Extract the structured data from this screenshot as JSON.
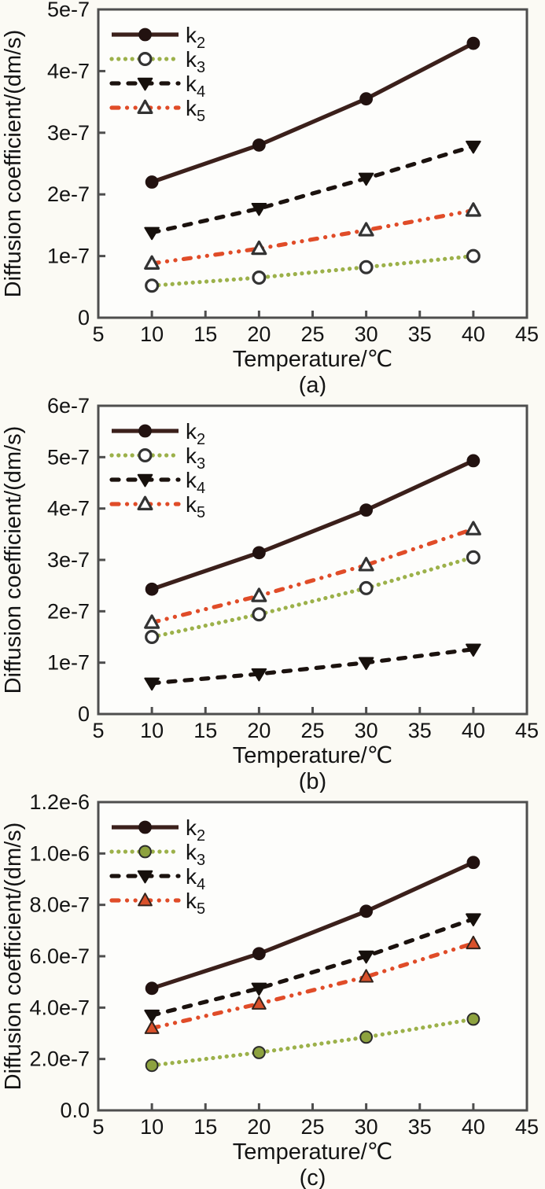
{
  "style": {
    "figure_bg": "#fbfaf4",
    "plot_bg": "#fdfdfb",
    "axis_color": "#4e4e4e",
    "text_color": "#141414",
    "line_width": 5.2
  },
  "chart_data": [
    {
      "type": "line",
      "panel_label": "(a)",
      "title": "",
      "xlabel": "Temperature/℃",
      "ylabel": "Diffusion coefficient/(dm/s)",
      "x": [
        10,
        20,
        30,
        40
      ],
      "xlim": [
        5,
        45
      ],
      "xticks": [
        5,
        10,
        15,
        20,
        25,
        30,
        35,
        40,
        45
      ],
      "ylim": [
        0,
        5e-07
      ],
      "yticks": [
        {
          "value": 0,
          "label": "0"
        },
        {
          "value": 1e-07,
          "label": "1e-7"
        },
        {
          "value": 2e-07,
          "label": "2e-7"
        },
        {
          "value": 3e-07,
          "label": "3e-7"
        },
        {
          "value": 4e-07,
          "label": "4e-7"
        },
        {
          "value": 5e-07,
          "label": "5e-7"
        }
      ],
      "grid": false,
      "legend_position": "top-left",
      "series": [
        {
          "name": "k2",
          "label_main": "k",
          "label_sub": "2",
          "values": [
            2.2e-07,
            2.8e-07,
            3.55e-07,
            4.45e-07
          ],
          "color": "#3b201b",
          "line_style": "solid",
          "marker": "circle",
          "marker_fill": "#221210",
          "marker_edge": "#221210"
        },
        {
          "name": "k3",
          "label_main": "k",
          "label_sub": "3",
          "values": [
            5.2e-08,
            6.5e-08,
            8.2e-08,
            1e-07
          ],
          "color": "#9cb14a",
          "line_style": "dotted",
          "marker": "circle",
          "marker_fill": "#ffffff",
          "marker_edge": "#333333"
        },
        {
          "name": "k4",
          "label_main": "k",
          "label_sub": "4",
          "values": [
            1.38e-07,
            1.77e-07,
            2.26e-07,
            2.78e-07
          ],
          "color": "#1b120e",
          "line_style": "dashed",
          "marker": "triangle-down",
          "marker_fill": "#16100c",
          "marker_edge": "#16100c"
        },
        {
          "name": "k5",
          "label_main": "k",
          "label_sub": "5",
          "values": [
            8.8e-08,
            1.12e-07,
            1.42e-07,
            1.74e-07
          ],
          "color": "#e04c28",
          "line_style": "dash-dot-dot",
          "marker": "triangle-up",
          "marker_fill": "#ffffff",
          "marker_edge": "#333333"
        }
      ]
    },
    {
      "type": "line",
      "panel_label": "(b)",
      "title": "",
      "xlabel": "Temperature/℃",
      "ylabel": "Diffusion coefficient/(dm/s)",
      "x": [
        10,
        20,
        30,
        40
      ],
      "xlim": [
        5,
        45
      ],
      "xticks": [
        5,
        10,
        15,
        20,
        25,
        30,
        35,
        40,
        45
      ],
      "ylim": [
        0,
        6e-07
      ],
      "yticks": [
        {
          "value": 0,
          "label": "0"
        },
        {
          "value": 1e-07,
          "label": "1e-7"
        },
        {
          "value": 2e-07,
          "label": "2e-7"
        },
        {
          "value": 3e-07,
          "label": "3e-7"
        },
        {
          "value": 4e-07,
          "label": "4e-7"
        },
        {
          "value": 5e-07,
          "label": "5e-7"
        },
        {
          "value": 6e-07,
          "label": "6e-7"
        }
      ],
      "grid": false,
      "legend_position": "top-left",
      "series": [
        {
          "name": "k2",
          "label_main": "k",
          "label_sub": "2",
          "values": [
            2.43e-07,
            3.14e-07,
            3.97e-07,
            4.93e-07
          ],
          "color": "#3b201b",
          "line_style": "solid",
          "marker": "circle",
          "marker_fill": "#221210",
          "marker_edge": "#221210"
        },
        {
          "name": "k3",
          "label_main": "k",
          "label_sub": "3",
          "values": [
            1.5e-07,
            1.94e-07,
            2.45e-07,
            3.05e-07
          ],
          "color": "#9cb14a",
          "line_style": "dotted",
          "marker": "circle",
          "marker_fill": "#ffffff",
          "marker_edge": "#333333"
        },
        {
          "name": "k4",
          "label_main": "k",
          "label_sub": "4",
          "values": [
            6e-08,
            7.8e-08,
            1e-07,
            1.26e-07
          ],
          "color": "#1b120e",
          "line_style": "dashed",
          "marker": "triangle-down",
          "marker_fill": "#16100c",
          "marker_edge": "#16100c"
        },
        {
          "name": "k5",
          "label_main": "k",
          "label_sub": "5",
          "values": [
            1.78e-07,
            2.3e-07,
            2.9e-07,
            3.6e-07
          ],
          "color": "#e04c28",
          "line_style": "dash-dot-dot",
          "marker": "triangle-up",
          "marker_fill": "#ffffff",
          "marker_edge": "#333333"
        }
      ]
    },
    {
      "type": "line",
      "panel_label": "(c)",
      "title": "",
      "xlabel": "Temperature/℃",
      "ylabel": "Diffusion coefficient/(dm/s)",
      "x": [
        10,
        20,
        30,
        40
      ],
      "xlim": [
        5,
        45
      ],
      "xticks": [
        5,
        10,
        15,
        20,
        25,
        30,
        35,
        40,
        45
      ],
      "ylim": [
        0,
        1.2e-06
      ],
      "yticks": [
        {
          "value": 0,
          "label": "0.0"
        },
        {
          "value": 2e-07,
          "label": "2.0e-7"
        },
        {
          "value": 4e-07,
          "label": "4.0e-7"
        },
        {
          "value": 6e-07,
          "label": "6.0e-7"
        },
        {
          "value": 8e-07,
          "label": "8.0e-7"
        },
        {
          "value": 1e-06,
          "label": "1.0e-6"
        },
        {
          "value": 1.2e-06,
          "label": "1.2e-6"
        }
      ],
      "grid": false,
      "legend_position": "top-left",
      "series": [
        {
          "name": "k2",
          "label_main": "k",
          "label_sub": "2",
          "values": [
            4.75e-07,
            6.1e-07,
            7.75e-07,
            9.65e-07
          ],
          "color": "#3b201b",
          "line_style": "solid",
          "marker": "circle",
          "marker_fill": "#221210",
          "marker_edge": "#221210"
        },
        {
          "name": "k3",
          "label_main": "k",
          "label_sub": "3",
          "values": [
            1.75e-07,
            2.25e-07,
            2.85e-07,
            3.55e-07
          ],
          "color": "#9cb14a",
          "line_style": "dotted",
          "marker": "circle",
          "marker_fill": "#8da23f",
          "marker_edge": "#2c2c2c"
        },
        {
          "name": "k4",
          "label_main": "k",
          "label_sub": "4",
          "values": [
            3.7e-07,
            4.75e-07,
            6e-07,
            7.45e-07
          ],
          "color": "#1b120e",
          "line_style": "dashed",
          "marker": "triangle-down",
          "marker_fill": "#16100c",
          "marker_edge": "#16100c"
        },
        {
          "name": "k5",
          "label_main": "k",
          "label_sub": "5",
          "values": [
            3.2e-07,
            4.15e-07,
            5.2e-07,
            6.5e-07
          ],
          "color": "#e04c28",
          "line_style": "dash-dot-dot",
          "marker": "triangle-up",
          "marker_fill": "#d9512b",
          "marker_edge": "#33231c"
        }
      ]
    }
  ]
}
